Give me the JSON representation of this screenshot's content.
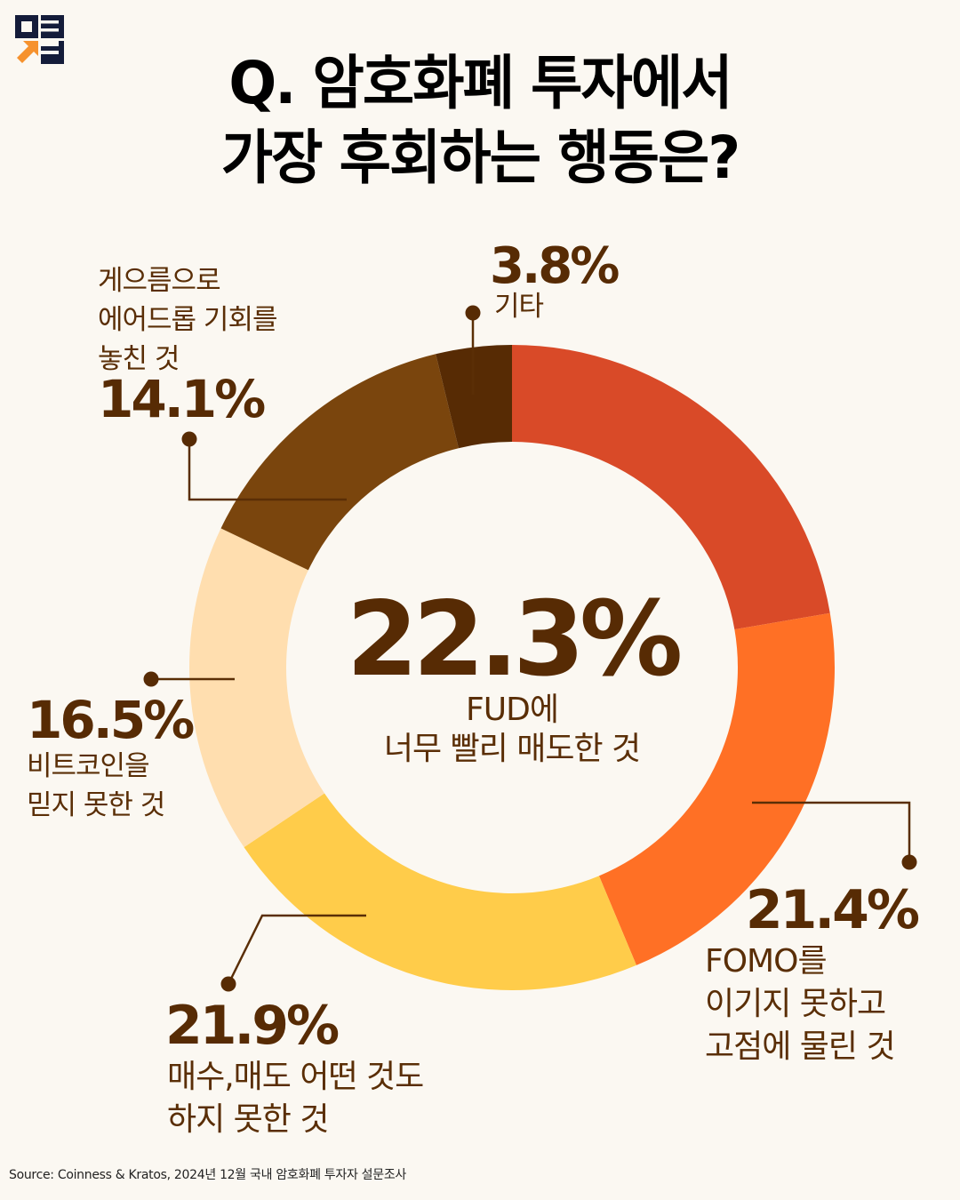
{
  "title": {
    "line1": "Q. 암호화폐 투자에서",
    "line2": "가장 후회하는 행동은?"
  },
  "source": "Source: Coinness & Kratos, 2024년 12월 국내 암호화폐 투자자 설문조사",
  "logo": {
    "name": "brand-logo",
    "colors": {
      "navy": "#141C3A",
      "orange": "#F6922E"
    }
  },
  "highlight": {
    "value": "22.3%",
    "label_line1": "FUD에",
    "label_line2": "너무 빨리 매도한 것"
  },
  "labels": {
    "fomo": {
      "value": "21.4%",
      "lines": [
        "FOMO를",
        "이기지 못하고",
        "고점에 물린 것"
      ]
    },
    "inaction": {
      "value": "21.9%",
      "lines": [
        "매수,매도 어떤 것도",
        "하지 못한 것"
      ]
    },
    "bitcoin": {
      "value": "16.5%",
      "lines": [
        "비트코인을",
        "믿지 못한 것"
      ]
    },
    "airdrop": {
      "value": "14.1%",
      "lines": [
        "게으름으로",
        "에어드롭 기회를",
        "놓친 것"
      ]
    },
    "other": {
      "value": "3.8%",
      "lines": [
        "기타"
      ]
    }
  },
  "colors": {
    "background": "#FBF8F2",
    "text_dark": "#572B04",
    "leader": "#5A2E06"
  },
  "chart_data": {
    "type": "pie",
    "variant": "donut",
    "title": "Q. 암호화폐 투자에서 가장 후회하는 행동은?",
    "categories": [
      "FUD에 너무 빨리 매도한 것",
      "FOMO를 이기지 못하고 고점에 물린 것",
      "매수,매도 어떤 것도 하지 못한 것",
      "비트코인을 믿지 못한 것",
      "게으름으로 에어드롭 기회를 놓친 것",
      "기타"
    ],
    "values": [
      22.3,
      21.4,
      21.9,
      16.5,
      14.1,
      3.8
    ],
    "unit": "%",
    "colors": [
      "#D94A28",
      "#FF7025",
      "#FFCC4A",
      "#FFDEAF",
      "#7A450D",
      "#572B04"
    ],
    "start_angle_deg": 0,
    "direction": "clockwise",
    "center": [
      576,
      751
    ],
    "outer_radius": 363,
    "inner_radius": 254,
    "legend": "none (direct labels with leader lines)",
    "source": "Coinness & Kratos, 2024년 12월 국내 암호화폐 투자자 설문조사"
  }
}
